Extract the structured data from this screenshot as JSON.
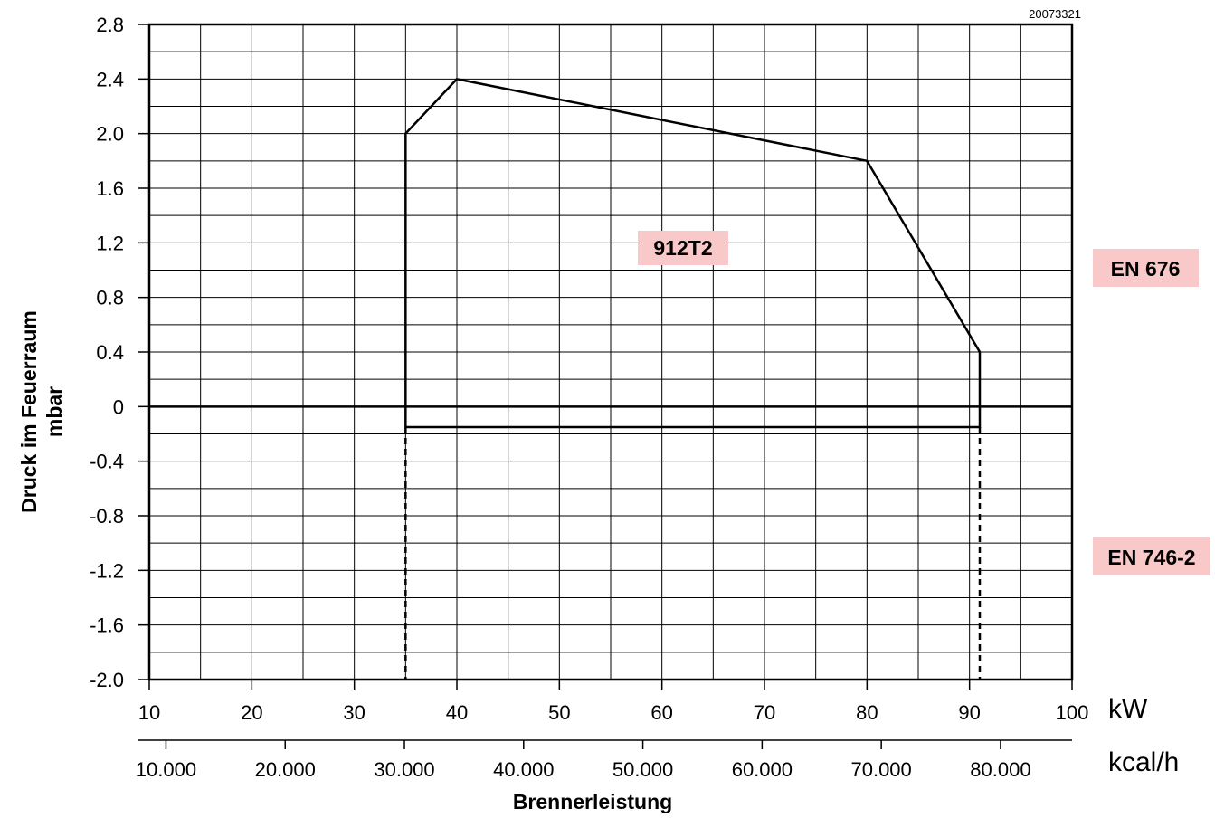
{
  "chart_data": {
    "type": "line",
    "code": "20073321",
    "ylabel": "Druck im Feuerraum",
    "yunit": "mbar",
    "xlabel": "Brennerleistung",
    "x_unit_kw": "kW",
    "x_unit_kcal": "kcal/h",
    "xlim": [
      10,
      100
    ],
    "ylim": [
      -2.0,
      2.8
    ],
    "grid": true,
    "y_ticks": [
      "2.8",
      "2.4",
      "2.0",
      "1.6",
      "1.2",
      "0.8",
      "0.4",
      "0",
      "-0.4",
      "-0.8",
      "-1.2",
      "-1.6",
      "-2.0"
    ],
    "x_ticks_kw": [
      "10",
      "20",
      "30",
      "40",
      "50",
      "60",
      "70",
      "80",
      "90",
      "100"
    ],
    "x_ticks_kcal": [
      "10.000",
      "20.000",
      "30.000",
      "40.000",
      "50.000",
      "60.000",
      "70.000",
      "80.000"
    ],
    "series": [
      {
        "name": "912T2",
        "x": [
          35,
          35,
          40,
          80,
          91,
          91,
          35
        ],
        "y": [
          -0.15,
          2.0,
          2.4,
          1.8,
          0.4,
          -0.15,
          -0.15
        ]
      }
    ],
    "dashed_limits_kw": [
      35,
      91
    ],
    "labels": {
      "upper_standard": "EN 676",
      "lower_standard": "EN 746-2"
    },
    "colors": {
      "label_bg": "#f9c8c8",
      "line": "#000000",
      "grid": "#000000"
    }
  }
}
